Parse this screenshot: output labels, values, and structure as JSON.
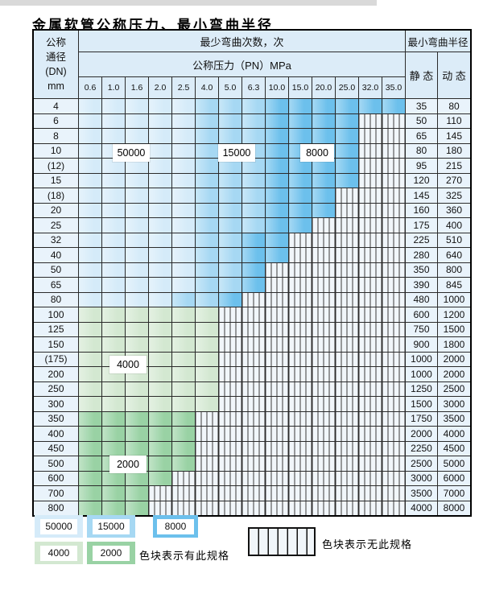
{
  "page": {
    "title": "金属软管公称压力、最小弯曲半径"
  },
  "table": {
    "corner_lines": [
      "公称",
      "通径",
      "(DN)",
      "mm"
    ],
    "cycles_header": "最少弯曲次数，次",
    "pressure_header": "公称压力（PN）MPa",
    "radius_header": "最小弯曲半径",
    "static_label": "静 态",
    "dynamic_label": "动 态",
    "pressures": [
      "0.6",
      "1.0",
      "1.6",
      "2.0",
      "2.5",
      "4.0",
      "5.0",
      "6.3",
      "10.0",
      "15.0",
      "20.0",
      "25.0",
      "32.0",
      "35.0"
    ],
    "rows": [
      {
        "dn": "4",
        "static": "35",
        "dynamic": "80",
        "band": "blue",
        "light_end": 5,
        "med_end": 8,
        "last": 14
      },
      {
        "dn": "6",
        "static": "50",
        "dynamic": "110",
        "band": "blue",
        "light_end": 5,
        "med_end": 8,
        "last": 12
      },
      {
        "dn": "8",
        "static": "65",
        "dynamic": "145",
        "band": "blue",
        "light_end": 5,
        "med_end": 8,
        "last": 12
      },
      {
        "dn": "10",
        "static": "80",
        "dynamic": "180",
        "band": "blue",
        "light_end": 5,
        "med_end": 8,
        "last": 12
      },
      {
        "dn": "(12)",
        "static": "95",
        "dynamic": "215",
        "band": "blue",
        "light_end": 5,
        "med_end": 8,
        "last": 12
      },
      {
        "dn": "15",
        "static": "120",
        "dynamic": "270",
        "band": "blue",
        "light_end": 5,
        "med_end": 8,
        "last": 12
      },
      {
        "dn": "(18)",
        "static": "145",
        "dynamic": "325",
        "band": "blue",
        "light_end": 5,
        "med_end": 8,
        "last": 11
      },
      {
        "dn": "20",
        "static": "160",
        "dynamic": "360",
        "band": "blue",
        "light_end": 5,
        "med_end": 8,
        "last": 11
      },
      {
        "dn": "25",
        "static": "175",
        "dynamic": "400",
        "band": "blue",
        "light_end": 5,
        "med_end": 8,
        "last": 10
      },
      {
        "dn": "32",
        "static": "225",
        "dynamic": "510",
        "band": "blue",
        "light_end": 5,
        "med_end": 7,
        "last": 9
      },
      {
        "dn": "40",
        "static": "280",
        "dynamic": "640",
        "band": "blue",
        "light_end": 5,
        "med_end": 7,
        "last": 9
      },
      {
        "dn": "50",
        "static": "350",
        "dynamic": "800",
        "band": "blue",
        "light_end": 5,
        "med_end": 7,
        "last": 8
      },
      {
        "dn": "65",
        "static": "390",
        "dynamic": "845",
        "band": "blue",
        "light_end": 5,
        "med_end": 7,
        "last": 8
      },
      {
        "dn": "80",
        "static": "480",
        "dynamic": "1000",
        "band": "blue",
        "light_end": 4,
        "med_end": 6,
        "last": 7
      },
      {
        "dn": "100",
        "static": "600",
        "dynamic": "1200",
        "band": "green_light",
        "last": 6
      },
      {
        "dn": "125",
        "static": "750",
        "dynamic": "1500",
        "band": "green_light",
        "last": 6
      },
      {
        "dn": "150",
        "static": "900",
        "dynamic": "1800",
        "band": "green_light",
        "last": 6
      },
      {
        "dn": "(175)",
        "static": "1000",
        "dynamic": "2000",
        "band": "green_light",
        "last": 6
      },
      {
        "dn": "200",
        "static": "1000",
        "dynamic": "2000",
        "band": "green_light",
        "last": 6
      },
      {
        "dn": "250",
        "static": "1250",
        "dynamic": "2500",
        "band": "green_light",
        "last": 6
      },
      {
        "dn": "300",
        "static": "1500",
        "dynamic": "3000",
        "band": "green_light",
        "last": 6
      },
      {
        "dn": "350",
        "static": "1750",
        "dynamic": "3500",
        "band": "green_dark",
        "last": 5
      },
      {
        "dn": "400",
        "static": "2000",
        "dynamic": "4000",
        "band": "green_dark",
        "last": 5
      },
      {
        "dn": "450",
        "static": "2250",
        "dynamic": "4500",
        "band": "green_dark",
        "last": 5
      },
      {
        "dn": "500",
        "static": "2500",
        "dynamic": "5000",
        "band": "green_dark",
        "last": 5
      },
      {
        "dn": "600",
        "static": "3000",
        "dynamic": "6000",
        "band": "green_dark",
        "last": 4
      },
      {
        "dn": "700",
        "static": "3500",
        "dynamic": "7000",
        "band": "green_dark",
        "last": 3
      },
      {
        "dn": "800",
        "static": "4000",
        "dynamic": "8000",
        "band": "green_dark",
        "last": 3
      }
    ]
  },
  "zone_labels": {
    "z50000": "50000",
    "z15000": "15000",
    "z8000": "8000",
    "z4000": "4000",
    "z2000": "2000"
  },
  "legend": {
    "sw50000": "50000",
    "sw15000": "15000",
    "sw8000": "8000",
    "sw4000": "4000",
    "sw2000": "2000",
    "has_spec_text": "色块表示有此规格",
    "no_spec_text": "色块表示无此规格"
  },
  "colors": {
    "blue_light": "#d5ebf9",
    "blue_mid": "#a6d8f3",
    "blue_dark": "#6cc0ec",
    "green_light": "#d3e8d1",
    "green_dark": "#99d2a4",
    "header_bg": "#dcecf8",
    "row_label_bg": "#e9f3fb",
    "hatch_bg": "#f1f6fa"
  }
}
